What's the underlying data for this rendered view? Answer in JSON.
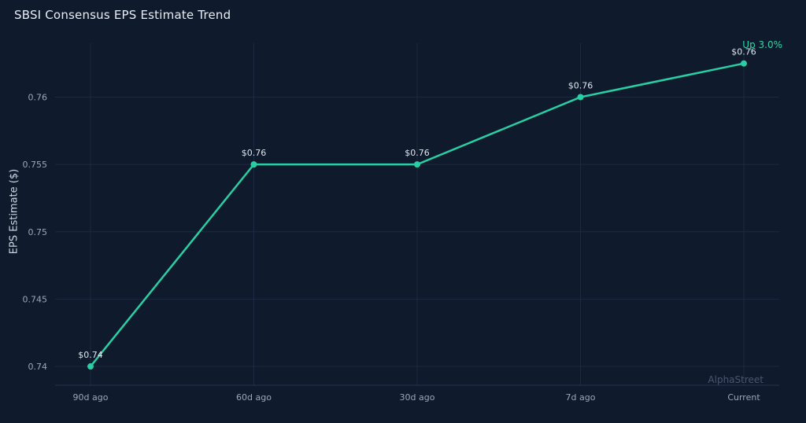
{
  "chart_data": {
    "type": "line",
    "title": "SBSI Consensus EPS Estimate Trend",
    "ylabel": "EPS Estimate ($)",
    "xlabel": "",
    "categories": [
      "90d ago",
      "60d ago",
      "30d ago",
      "7d ago",
      "Current"
    ],
    "values": [
      0.74,
      0.755,
      0.755,
      0.76,
      0.7625
    ],
    "point_labels": [
      "$0.74",
      "$0.76",
      "$0.76",
      "$0.76",
      "$0.76"
    ],
    "yticks": [
      0.74,
      0.745,
      0.75,
      0.755,
      0.76
    ],
    "ylim": [
      0.7386,
      0.764
    ],
    "grid": true,
    "legend": "none",
    "annotation": "Up 3.0%",
    "watermark": "AlphaStreet",
    "colors": {
      "background": "#0f1b2c",
      "line": "#29cfa4",
      "grid": "#1b2a40",
      "axis": "#223453",
      "tick_text": "#9aa7bb",
      "title_text": "#e8edf4",
      "label_text": "#dfe6ee",
      "annotation_text": "#2bd4a8",
      "watermark_text": "#49566e"
    }
  }
}
